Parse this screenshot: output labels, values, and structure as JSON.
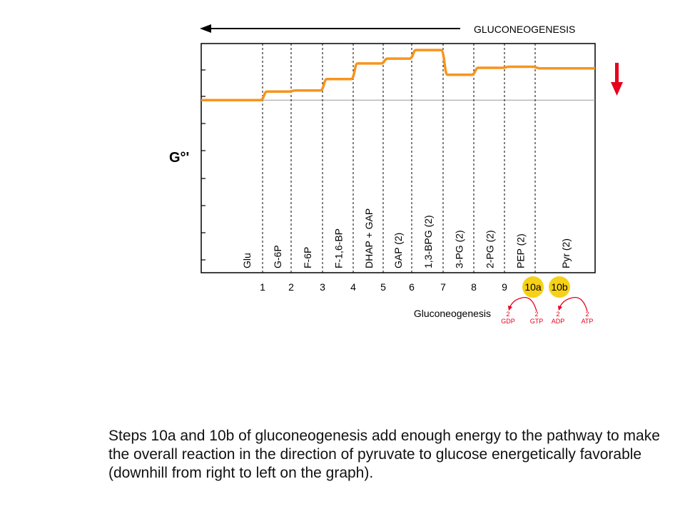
{
  "chart_data": {
    "type": "line",
    "title": "",
    "direction_label": "GLUCONEOGENESIS",
    "ylabel": "G°'",
    "xlabel": "",
    "step_axis_label": "Gluconeogenesis",
    "step_labels": [
      "1",
      "2",
      "3",
      "4",
      "5",
      "6",
      "7",
      "8",
      "9",
      "10a",
      "10b"
    ],
    "highlighted_steps": [
      "10a",
      "10b"
    ],
    "intermediates": [
      "Glu",
      "G-6P",
      "F-6P",
      "F-1,6-BP",
      "DHAP + GAP",
      "GAP (2)",
      "1,3-BPG (2)",
      "3-PG (2)",
      "2-PG (2)",
      "PEP (2)",
      "Pyr (2)"
    ],
    "free_energy_levels": [
      0,
      1.6,
      1.8,
      3.9,
      6.8,
      7.7,
      9.3,
      4.7,
      6.0,
      6.2,
      5.9
    ],
    "ylim": [
      -32,
      10.5
    ],
    "reference_level": 0,
    "cofactor_arrows": [
      {
        "step": "10a",
        "from_label": "GTP",
        "to_label": "GDP",
        "from_count": "2",
        "to_count": "2"
      },
      {
        "step": "10b",
        "from_label": "ATP",
        "to_label": "ADP",
        "from_count": "2",
        "to_count": "2"
      }
    ],
    "colors": {
      "curve": "#F7941D",
      "reference": "#999999",
      "highlight": "#F7D117",
      "arrow": "#E8001C",
      "axis": "#000000"
    },
    "grid": false
  },
  "caption": "Steps 10a and 10b of gluconeogenesis add enough energy to the pathway to make the overall reaction in the direction of pyruvate to glucose energetically favorable (downhill from right to left on the graph)."
}
